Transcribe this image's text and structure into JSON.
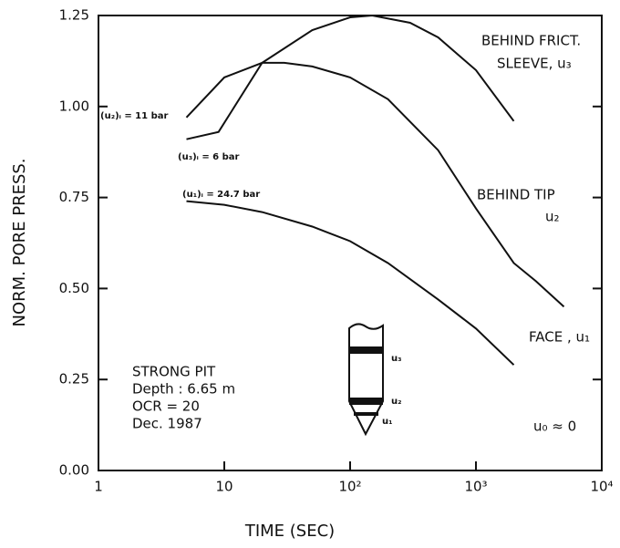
{
  "chart_data": {
    "type": "line",
    "xlabel": "TIME (SEC)",
    "ylabel": "NORM. PORE PRESS.",
    "xscale": "log",
    "xlim": [
      1,
      10000
    ],
    "ylim": [
      0,
      1.25
    ],
    "xticks": [
      1,
      10,
      {
        "value": 100,
        "label": "10²"
      },
      {
        "value": 1000,
        "label": "10³"
      },
      {
        "value": 10000,
        "label": "10⁴"
      }
    ],
    "yticks": [
      {
        "value": 0,
        "label": "0.00"
      },
      0.25,
      {
        "value": 0.5,
        "label": "0.50"
      },
      0.75,
      {
        "value": 1,
        "label": "1.00"
      },
      1.25
    ],
    "series": [
      {
        "color": "#111111",
        "x": [
          5,
          10,
          20,
          50,
          100,
          200,
          500,
          1000,
          2000
        ],
        "values": [
          0.74,
          0.73,
          0.71,
          0.67,
          0.63,
          0.57,
          0.47,
          0.39,
          0.29
        ]
      },
      {
        "color": "#111111",
        "x": [
          5,
          10,
          20,
          30,
          50,
          100,
          200,
          500,
          1000,
          2000,
          3000,
          5000
        ],
        "values": [
          0.97,
          1.08,
          1.12,
          1.12,
          1.11,
          1.08,
          1.02,
          0.88,
          0.72,
          0.57,
          0.52,
          0.45
        ]
      },
      {
        "color": "#111111",
        "x": [
          5,
          9,
          20,
          50,
          100,
          150,
          300,
          500,
          1000,
          2000
        ],
        "values": [
          0.91,
          0.93,
          1.12,
          1.21,
          1.245,
          1.25,
          1.23,
          1.19,
          1.1,
          0.96
        ]
      }
    ],
    "annotations": [
      "BEHIND FRICT.",
      "SLEEVE, u₃",
      "BEHIND TIP",
      "u₂",
      "FACE , u₁",
      "(u₂)ᵢ = 11 bar",
      "(u₃)ᵢ = 6 bar",
      "(u₁)ᵢ = 24.7 bar",
      "STRONG PIT",
      "Depth : 6.65 m",
      "OCR = 20",
      "Dec. 1987",
      "u₀ ≈ 0",
      "u₃",
      "u₂",
      "u₁"
    ]
  }
}
